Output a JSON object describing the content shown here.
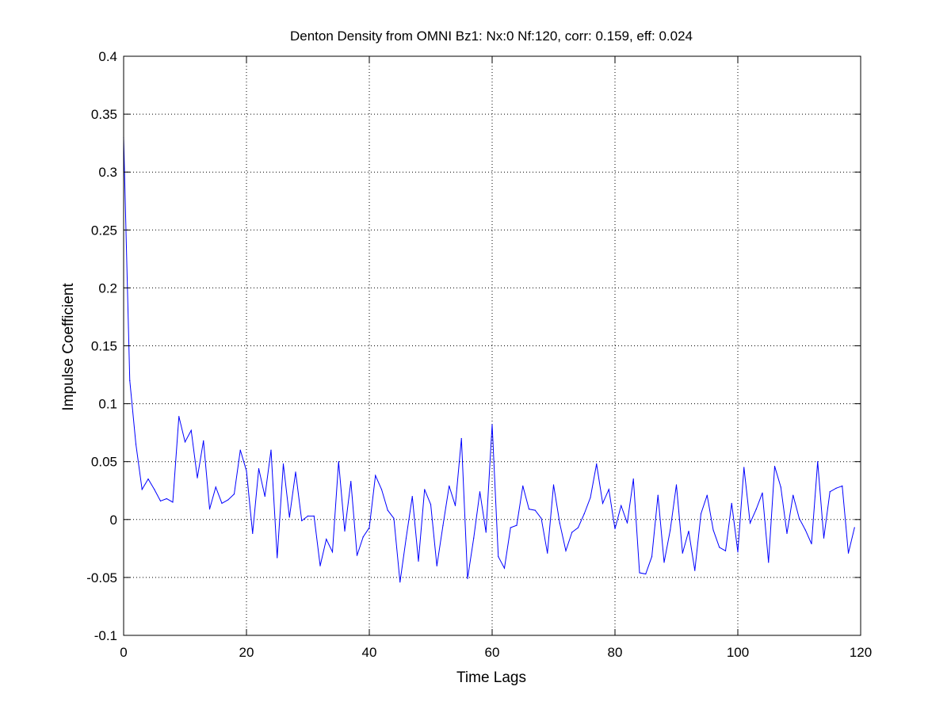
{
  "chart_data": {
    "type": "line",
    "title": "Denton Density from OMNI Bz1: Nx:0 Nf:120, corr: 0.159, eff: 0.024",
    "xlabel": "Time Lags",
    "ylabel": "Impulse Coefficient",
    "xlim": [
      0,
      120
    ],
    "ylim": [
      -0.1,
      0.4
    ],
    "xticks": [
      0,
      20,
      40,
      60,
      80,
      100,
      120
    ],
    "yticks": [
      -0.1,
      -0.05,
      0,
      0.05,
      0.1,
      0.15,
      0.2,
      0.25,
      0.3,
      0.35,
      0.4
    ],
    "xtick_labels": [
      "0",
      "20",
      "40",
      "60",
      "80",
      "100",
      "120"
    ],
    "ytick_labels": [
      "-0.1",
      "-0.05",
      "0",
      "0.05",
      "0.1",
      "0.15",
      "0.2",
      "0.25",
      "0.3",
      "0.35",
      "0.4"
    ],
    "grid": true,
    "line_color": "#0000ff",
    "series": [
      {
        "x": [
          0,
          1,
          2,
          3,
          4,
          5,
          6,
          7,
          8,
          9,
          10,
          11,
          12,
          13,
          14,
          15,
          16,
          17,
          18,
          19,
          20,
          21,
          22,
          23,
          24,
          25,
          26,
          27,
          28,
          29,
          30,
          31,
          32,
          33,
          34,
          35,
          36,
          37,
          38,
          39,
          40,
          41,
          42,
          43,
          44,
          45,
          46,
          47,
          48,
          49,
          50,
          51,
          52,
          53,
          54,
          55,
          56,
          57,
          58,
          59,
          60,
          61,
          62,
          63,
          64,
          65,
          66,
          67,
          68,
          69,
          70,
          71,
          72,
          73,
          74,
          75,
          76,
          77,
          78,
          79,
          80,
          81,
          82,
          83,
          84,
          85,
          86,
          87,
          88,
          89,
          90,
          91,
          92,
          93,
          94,
          95,
          96,
          97,
          98,
          99,
          100,
          101,
          102,
          103,
          104,
          105,
          106,
          107,
          108,
          109,
          110,
          111,
          112,
          113,
          114,
          115,
          116,
          117,
          118,
          119
        ],
        "y": [
          0.33,
          0.12,
          0.065,
          0.026,
          0.035,
          0.026,
          0.016,
          0.018,
          0.015,
          0.089,
          0.067,
          0.077,
          0.036,
          0.068,
          0.009,
          0.028,
          0.014,
          0.017,
          0.022,
          0.06,
          0.042,
          -0.012,
          0.044,
          0.02,
          0.06,
          -0.033,
          0.048,
          0.002,
          0.041,
          -0.001,
          0.003,
          0.003,
          -0.04,
          -0.017,
          -0.028,
          0.05,
          -0.01,
          0.033,
          -0.031,
          -0.015,
          -0.007,
          0.038,
          0.026,
          0.008,
          0.001,
          -0.054,
          -0.016,
          0.02,
          -0.036,
          0.026,
          0.013,
          -0.04,
          -0.005,
          0.029,
          0.012,
          0.07,
          -0.051,
          -0.016,
          0.024,
          -0.011,
          0.082,
          -0.032,
          -0.042,
          -0.007,
          -0.005,
          0.029,
          0.009,
          0.008,
          0.001,
          -0.029,
          0.03,
          -0.003,
          -0.027,
          -0.011,
          -0.007,
          0.005,
          0.019,
          0.048,
          0.014,
          0.026,
          -0.008,
          0.012,
          -0.003,
          0.035,
          -0.046,
          -0.047,
          -0.032,
          0.021,
          -0.037,
          -0.009,
          0.03,
          -0.029,
          -0.01,
          -0.044,
          0.005,
          0.021,
          -0.009,
          -0.024,
          -0.027,
          0.014,
          -0.028,
          0.045,
          -0.003,
          0.009,
          0.023,
          -0.037,
          0.046,
          0.028,
          -0.012,
          0.021,
          0.001,
          -0.009,
          -0.021,
          0.05,
          -0.016,
          0.024,
          0.027,
          0.029,
          -0.029,
          -0.007
        ]
      }
    ]
  }
}
